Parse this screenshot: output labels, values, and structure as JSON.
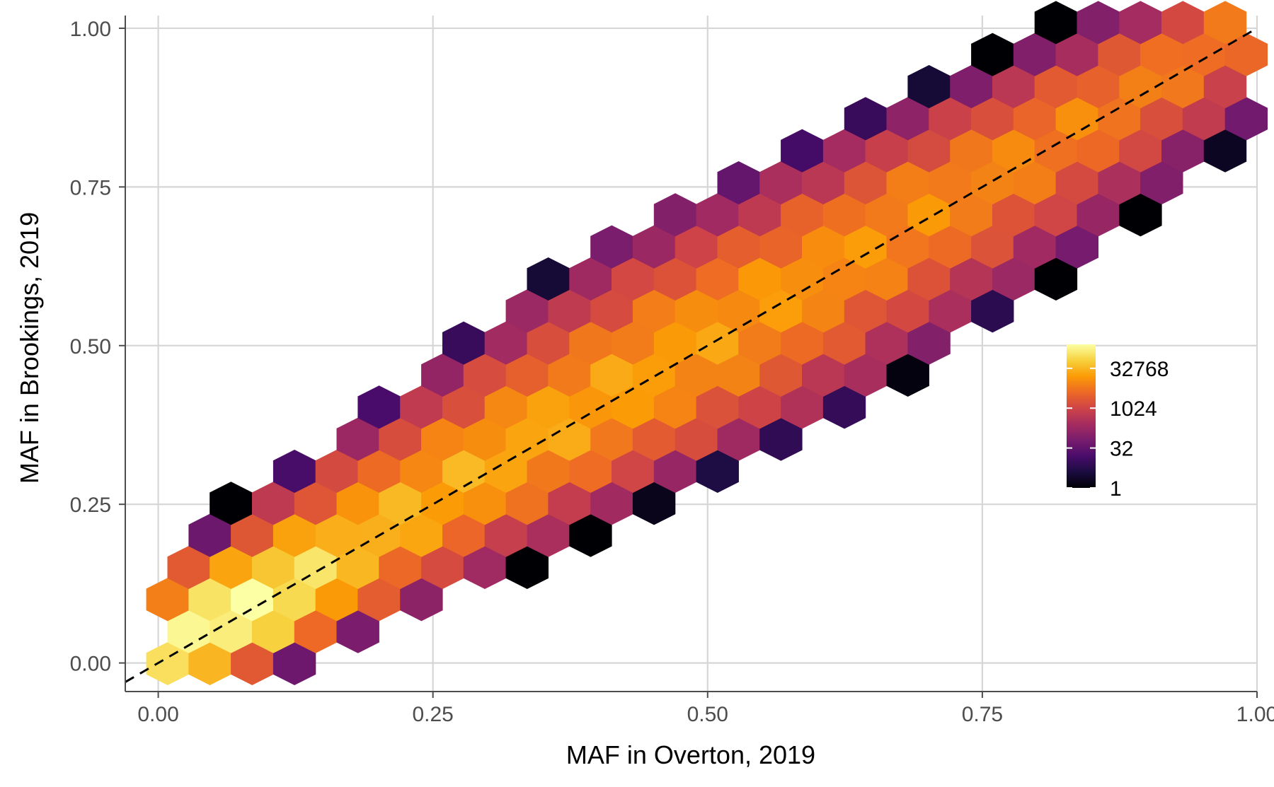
{
  "chart_data": {
    "type": "heatmap",
    "subtype": "hexbin",
    "xlabel": "MAF in Overton, 2019",
    "ylabel": "MAF in Brookings, 2019",
    "xlim": [
      -0.03,
      1.0
    ],
    "ylim": [
      -0.045,
      1.02
    ],
    "x_ticks": [
      0.0,
      0.25,
      0.5,
      0.75,
      1.0
    ],
    "x_tick_labels": [
      "0.00",
      "0.25",
      "0.50",
      "0.75",
      "1.00"
    ],
    "y_ticks": [
      0.0,
      0.25,
      0.5,
      0.75,
      1.0
    ],
    "y_tick_labels": [
      "0.00",
      "0.25",
      "0.50",
      "0.75",
      "1.00"
    ],
    "grid": true,
    "reference_line": {
      "style": "dashed",
      "color": "#000000",
      "slope": 1,
      "intercept": 0
    },
    "legend": {
      "placement": "right-inside",
      "scale": "log2",
      "range": [
        1,
        262144
      ],
      "breaks": [
        1,
        32,
        1024,
        32768
      ],
      "break_labels": [
        "1",
        "32",
        "1024",
        "32768"
      ]
    },
    "colormap": [
      "#000004",
      "#1b0c41",
      "#4a0c6b",
      "#781c6d",
      "#a52c60",
      "#cf4446",
      "#ed6925",
      "#fb9b06",
      "#f7d13d",
      "#fcffa4"
    ],
    "color_scale": "log2 count, inferno",
    "hex_band": {
      "description": "point density concentrated along y = x",
      "density_peak": [
        0.08,
        0.07
      ],
      "x_range": [
        0.03,
        0.96
      ],
      "y_range": [
        0.0,
        1.0
      ]
    }
  }
}
